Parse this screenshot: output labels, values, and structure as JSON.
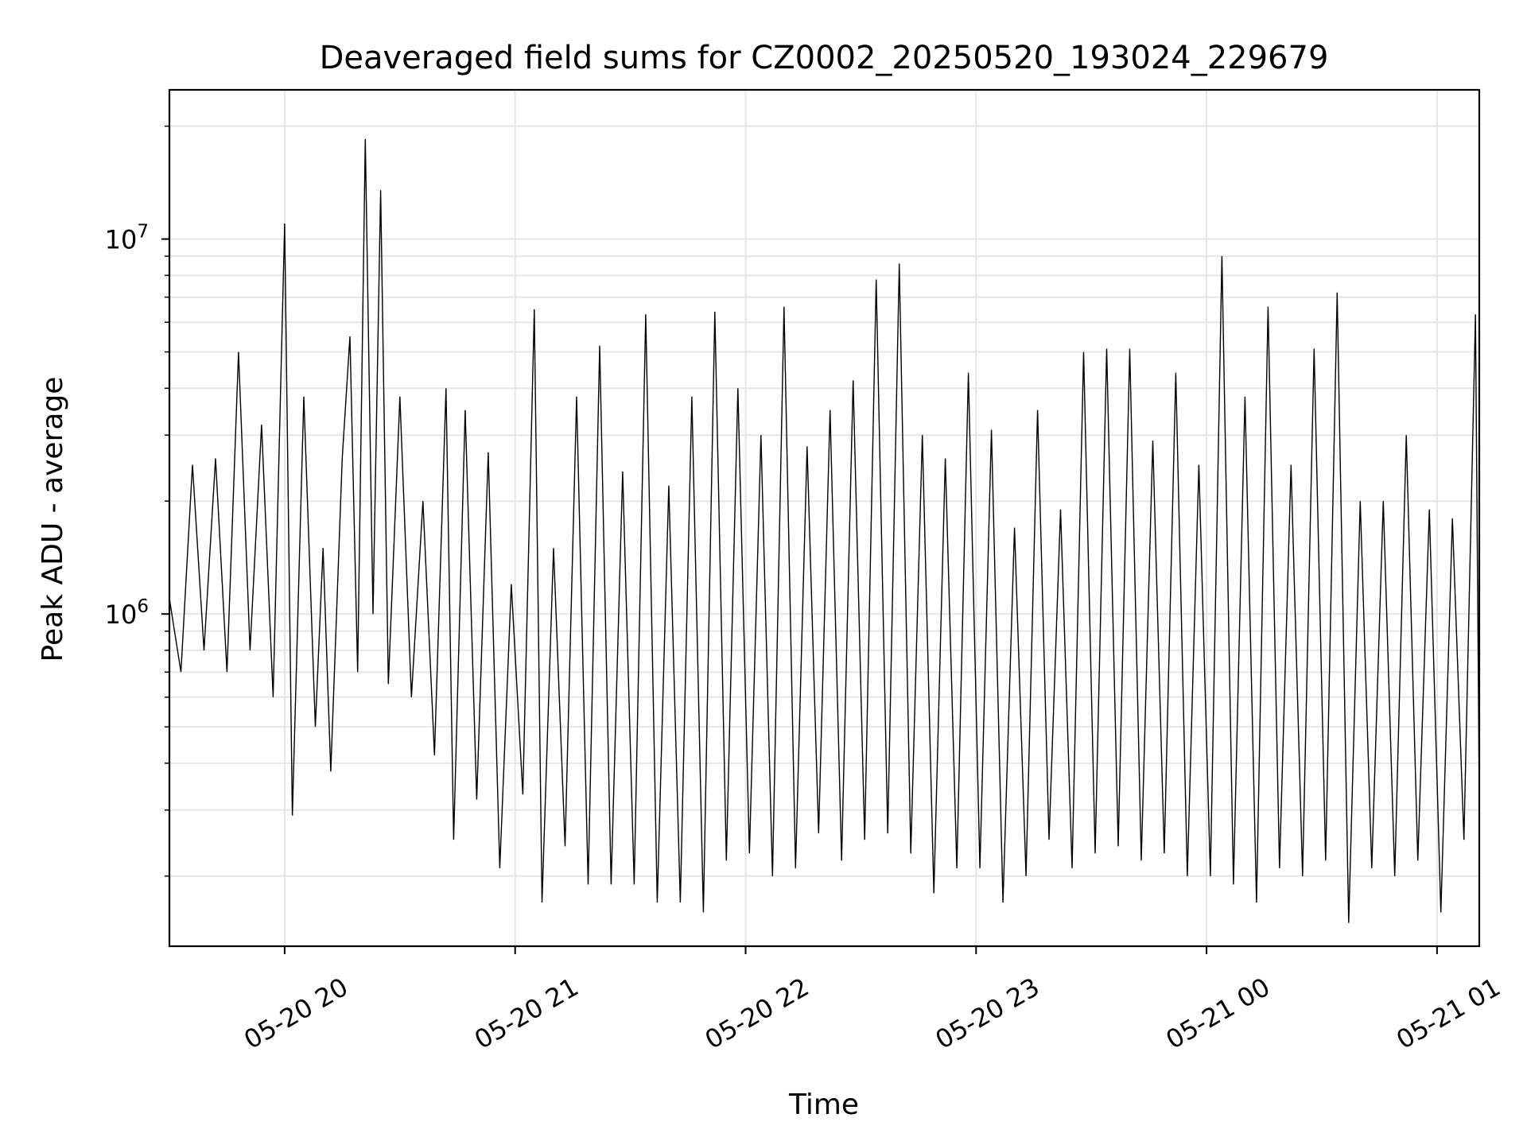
{
  "chart_data": {
    "type": "line",
    "title": "Deaveraged field sums for CZ0002_20250520_193024_229679",
    "xlabel": "Time",
    "ylabel": "Peak ADU - average",
    "yscale": "log",
    "ylim": [
      130000,
      25000000
    ],
    "xlim": [
      "2025-05-20 19:30",
      "2025-05-21 01:11"
    ],
    "x_ticks": [
      {
        "at": "2025-05-20 20:00",
        "label": "05-20 20"
      },
      {
        "at": "2025-05-20 21:00",
        "label": "05-20 21"
      },
      {
        "at": "2025-05-20 22:00",
        "label": "05-20 22"
      },
      {
        "at": "2025-05-20 23:00",
        "label": "05-20 23"
      },
      {
        "at": "2025-05-21 00:00",
        "label": "05-21 00"
      },
      {
        "at": "2025-05-21 01:00",
        "label": "05-21 01"
      }
    ],
    "y_ticks": [
      {
        "value": 1000000,
        "base": "10",
        "exp": "6"
      },
      {
        "value": 10000000,
        "base": "10",
        "exp": "7"
      }
    ],
    "grid": true,
    "line_color": "#000000",
    "series": [
      {
        "points": [
          [
            "2025-05-20 19:30",
            1100000
          ],
          [
            "2025-05-20 19:33",
            700000
          ],
          [
            "2025-05-20 19:36",
            2500000
          ],
          [
            "2025-05-20 19:39",
            800000
          ],
          [
            "2025-05-20 19:42",
            2600000
          ],
          [
            "2025-05-20 19:45",
            700000
          ],
          [
            "2025-05-20 19:48",
            5000000
          ],
          [
            "2025-05-20 19:51",
            800000
          ],
          [
            "2025-05-20 19:54",
            3200000
          ],
          [
            "2025-05-20 19:57",
            600000
          ],
          [
            "2025-05-20 20:00",
            11000000
          ],
          [
            "2025-05-20 20:02",
            290000
          ],
          [
            "2025-05-20 20:05",
            3800000
          ],
          [
            "2025-05-20 20:08",
            500000
          ],
          [
            "2025-05-20 20:10",
            1500000
          ],
          [
            "2025-05-20 20:12",
            380000
          ],
          [
            "2025-05-20 20:15",
            2600000
          ],
          [
            "2025-05-20 20:17",
            5500000
          ],
          [
            "2025-05-20 20:19",
            700000
          ],
          [
            "2025-05-20 20:21",
            18500000
          ],
          [
            "2025-05-20 20:23",
            1000000
          ],
          [
            "2025-05-20 20:25",
            13500000
          ],
          [
            "2025-05-20 20:27",
            650000
          ],
          [
            "2025-05-20 20:30",
            3800000
          ],
          [
            "2025-05-20 20:33",
            600000
          ],
          [
            "2025-05-20 20:36",
            2000000
          ],
          [
            "2025-05-20 20:39",
            420000
          ],
          [
            "2025-05-20 20:42",
            4000000
          ],
          [
            "2025-05-20 20:44",
            250000
          ],
          [
            "2025-05-20 20:47",
            3500000
          ],
          [
            "2025-05-20 20:50",
            320000
          ],
          [
            "2025-05-20 20:53",
            2700000
          ],
          [
            "2025-05-20 20:56",
            210000
          ],
          [
            "2025-05-20 20:59",
            1200000
          ],
          [
            "2025-05-20 21:02",
            330000
          ],
          [
            "2025-05-20 21:05",
            6500000
          ],
          [
            "2025-05-20 21:07",
            170000
          ],
          [
            "2025-05-20 21:10",
            1500000
          ],
          [
            "2025-05-20 21:13",
            240000
          ],
          [
            "2025-05-20 21:16",
            3800000
          ],
          [
            "2025-05-20 21:19",
            190000
          ],
          [
            "2025-05-20 21:22",
            5200000
          ],
          [
            "2025-05-20 21:25",
            190000
          ],
          [
            "2025-05-20 21:28",
            2400000
          ],
          [
            "2025-05-20 21:31",
            190000
          ],
          [
            "2025-05-20 21:34",
            6300000
          ],
          [
            "2025-05-20 21:37",
            170000
          ],
          [
            "2025-05-20 21:40",
            2200000
          ],
          [
            "2025-05-20 21:43",
            170000
          ],
          [
            "2025-05-20 21:46",
            3800000
          ],
          [
            "2025-05-20 21:49",
            160000
          ],
          [
            "2025-05-20 21:52",
            6400000
          ],
          [
            "2025-05-20 21:55",
            220000
          ],
          [
            "2025-05-20 21:58",
            4000000
          ],
          [
            "2025-05-20 22:01",
            230000
          ],
          [
            "2025-05-20 22:04",
            3000000
          ],
          [
            "2025-05-20 22:07",
            200000
          ],
          [
            "2025-05-20 22:10",
            6600000
          ],
          [
            "2025-05-20 22:13",
            210000
          ],
          [
            "2025-05-20 22:16",
            2800000
          ],
          [
            "2025-05-20 22:19",
            260000
          ],
          [
            "2025-05-20 22:22",
            3500000
          ],
          [
            "2025-05-20 22:25",
            220000
          ],
          [
            "2025-05-20 22:28",
            4200000
          ],
          [
            "2025-05-20 22:31",
            250000
          ],
          [
            "2025-05-20 22:34",
            7800000
          ],
          [
            "2025-05-20 22:37",
            260000
          ],
          [
            "2025-05-20 22:40",
            8600000
          ],
          [
            "2025-05-20 22:43",
            230000
          ],
          [
            "2025-05-20 22:46",
            3000000
          ],
          [
            "2025-05-20 22:49",
            180000
          ],
          [
            "2025-05-20 22:52",
            2600000
          ],
          [
            "2025-05-20 22:55",
            210000
          ],
          [
            "2025-05-20 22:58",
            4400000
          ],
          [
            "2025-05-20 23:01",
            210000
          ],
          [
            "2025-05-20 23:04",
            3100000
          ],
          [
            "2025-05-20 23:07",
            170000
          ],
          [
            "2025-05-20 23:10",
            1700000
          ],
          [
            "2025-05-20 23:13",
            200000
          ],
          [
            "2025-05-20 23:16",
            3500000
          ],
          [
            "2025-05-20 23:19",
            250000
          ],
          [
            "2025-05-20 23:22",
            1900000
          ],
          [
            "2025-05-20 23:25",
            210000
          ],
          [
            "2025-05-20 23:28",
            5000000
          ],
          [
            "2025-05-20 23:31",
            230000
          ],
          [
            "2025-05-20 23:34",
            5100000
          ],
          [
            "2025-05-20 23:37",
            240000
          ],
          [
            "2025-05-20 23:40",
            5100000
          ],
          [
            "2025-05-20 23:43",
            220000
          ],
          [
            "2025-05-20 23:46",
            2900000
          ],
          [
            "2025-05-20 23:49",
            230000
          ],
          [
            "2025-05-20 23:52",
            4400000
          ],
          [
            "2025-05-20 23:55",
            200000
          ],
          [
            "2025-05-20 23:58",
            2500000
          ],
          [
            "2025-05-21 00:01",
            200000
          ],
          [
            "2025-05-21 00:04",
            9000000
          ],
          [
            "2025-05-21 00:07",
            190000
          ],
          [
            "2025-05-21 00:10",
            3800000
          ],
          [
            "2025-05-21 00:13",
            170000
          ],
          [
            "2025-05-21 00:16",
            6600000
          ],
          [
            "2025-05-21 00:19",
            210000
          ],
          [
            "2025-05-21 00:22",
            2500000
          ],
          [
            "2025-05-21 00:25",
            200000
          ],
          [
            "2025-05-21 00:28",
            5100000
          ],
          [
            "2025-05-21 00:31",
            220000
          ],
          [
            "2025-05-21 00:34",
            7200000
          ],
          [
            "2025-05-21 00:37",
            150000
          ],
          [
            "2025-05-21 00:40",
            2000000
          ],
          [
            "2025-05-21 00:43",
            210000
          ],
          [
            "2025-05-21 00:46",
            2000000
          ],
          [
            "2025-05-21 00:49",
            200000
          ],
          [
            "2025-05-21 00:52",
            3000000
          ],
          [
            "2025-05-21 00:55",
            220000
          ],
          [
            "2025-05-21 00:58",
            1900000
          ],
          [
            "2025-05-21 01:01",
            160000
          ],
          [
            "2025-05-21 01:04",
            1800000
          ],
          [
            "2025-05-21 01:07",
            250000
          ],
          [
            "2025-05-21 01:10",
            6300000
          ],
          [
            "2025-05-21 01:11",
            320000
          ]
        ]
      }
    ]
  }
}
